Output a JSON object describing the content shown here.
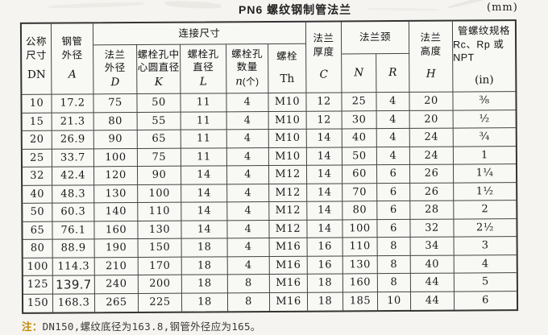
{
  "title": "PN6 螺纹钢制管法兰",
  "unit": "(mm)",
  "header": {
    "dn_l1": "公称",
    "dn_l2": "尺寸",
    "dn_sym": "DN",
    "a_l1": "钢管",
    "a_l2": "外径",
    "a_sym": "A",
    "connection": "连接尺寸",
    "d_l1": "法兰",
    "d_l2": "外径",
    "d_sym": "D",
    "k_l1": "螺栓孔中",
    "k_l2": "心圆直径",
    "k_sym": "K",
    "l_l1": "螺栓孔",
    "l_l2": "直径",
    "l_sym": "L",
    "n_l1": "螺栓孔",
    "n_l2": "数量",
    "n_sym": "n",
    "n_unit": "(个)",
    "th_l1": "螺栓",
    "th_sym": "Th",
    "c_l1": "法兰",
    "c_l2": "厚度",
    "c_sym": "C",
    "neck": "法兰颈",
    "nn_sym": "N",
    "r_sym": "R",
    "h_l1": "法兰",
    "h_l2": "高度",
    "h_sym": "H",
    "in_l1": "管螺纹规格",
    "in_l2": "Rc、Rp 或 NPT",
    "in_sym": "(in)"
  },
  "columns_order": [
    "dn",
    "a",
    "d",
    "k",
    "l",
    "n",
    "th",
    "c",
    "nn",
    "r",
    "h",
    "inch"
  ],
  "rows": [
    {
      "dn": "10",
      "a": "17.2",
      "d": "75",
      "k": "50",
      "l": "11",
      "n": "4",
      "th": "M10",
      "c": "12",
      "nn": "25",
      "r": "4",
      "h": "20",
      "inch": "⅜"
    },
    {
      "dn": "15",
      "a": "21.3",
      "d": "80",
      "k": "55",
      "l": "11",
      "n": "4",
      "th": "M10",
      "c": "12",
      "nn": "30",
      "r": "4",
      "h": "20",
      "inch": "½"
    },
    {
      "dn": "20",
      "a": "26.9",
      "d": "90",
      "k": "65",
      "l": "11",
      "n": "4",
      "th": "M10",
      "c": "14",
      "nn": "40",
      "r": "4",
      "h": "24",
      "inch": "¾"
    },
    {
      "dn": "25",
      "a": "33.7",
      "d": "100",
      "k": "75",
      "l": "11",
      "n": "4",
      "th": "M10",
      "c": "14",
      "nn": "50",
      "r": "4",
      "h": "24",
      "inch": "1"
    },
    {
      "dn": "32",
      "a": "42.4",
      "d": "120",
      "k": "90",
      "l": "14",
      "n": "4",
      "th": "M12",
      "c": "14",
      "nn": "60",
      "r": "6",
      "h": "26",
      "inch": "1¼"
    },
    {
      "dn": "40",
      "a": "48.3",
      "d": "130",
      "k": "100",
      "l": "14",
      "n": "4",
      "th": "M12",
      "c": "14",
      "nn": "70",
      "r": "6",
      "h": "26",
      "inch": "1½"
    },
    {
      "dn": "50",
      "a": "60.3",
      "d": "140",
      "k": "110",
      "l": "14",
      "n": "4",
      "th": "M12",
      "c": "14",
      "nn": "80",
      "r": "6",
      "h": "28",
      "inch": "2"
    },
    {
      "dn": "65",
      "a": "76.1",
      "d": "160",
      "k": "130",
      "l": "14",
      "n": "4",
      "th": "M12",
      "c": "14",
      "nn": "100",
      "r": "6",
      "h": "32",
      "inch": "2½"
    },
    {
      "dn": "80",
      "a": "88.9",
      "d": "190",
      "k": "150",
      "l": "18",
      "n": "4",
      "th": "M16",
      "c": "16",
      "nn": "110",
      "r": "8",
      "h": "34",
      "inch": "3"
    },
    {
      "dn": "100",
      "a": "114.3",
      "d": "210",
      "k": "170",
      "l": "18",
      "n": "4",
      "th": "M16",
      "c": "16",
      "nn": "130",
      "r": "8",
      "h": "40",
      "inch": "4"
    },
    {
      "dn": "125",
      "a": "139.7",
      "d": "240",
      "k": "200",
      "l": "18",
      "n": "8",
      "th": "M16",
      "c": "18",
      "nn": "160",
      "r": "8",
      "h": "44",
      "inch": "5",
      "a_edited": true
    },
    {
      "dn": "150",
      "a": "168.3",
      "d": "265",
      "k": "225",
      "l": "18",
      "n": "8",
      "th": "M16",
      "c": "18",
      "nn": "185",
      "r": "10",
      "h": "44",
      "inch": "6"
    }
  ],
  "note": {
    "label": "注：",
    "text": "DN150,螺纹底径为163.8,钢管外径应为165。"
  }
}
